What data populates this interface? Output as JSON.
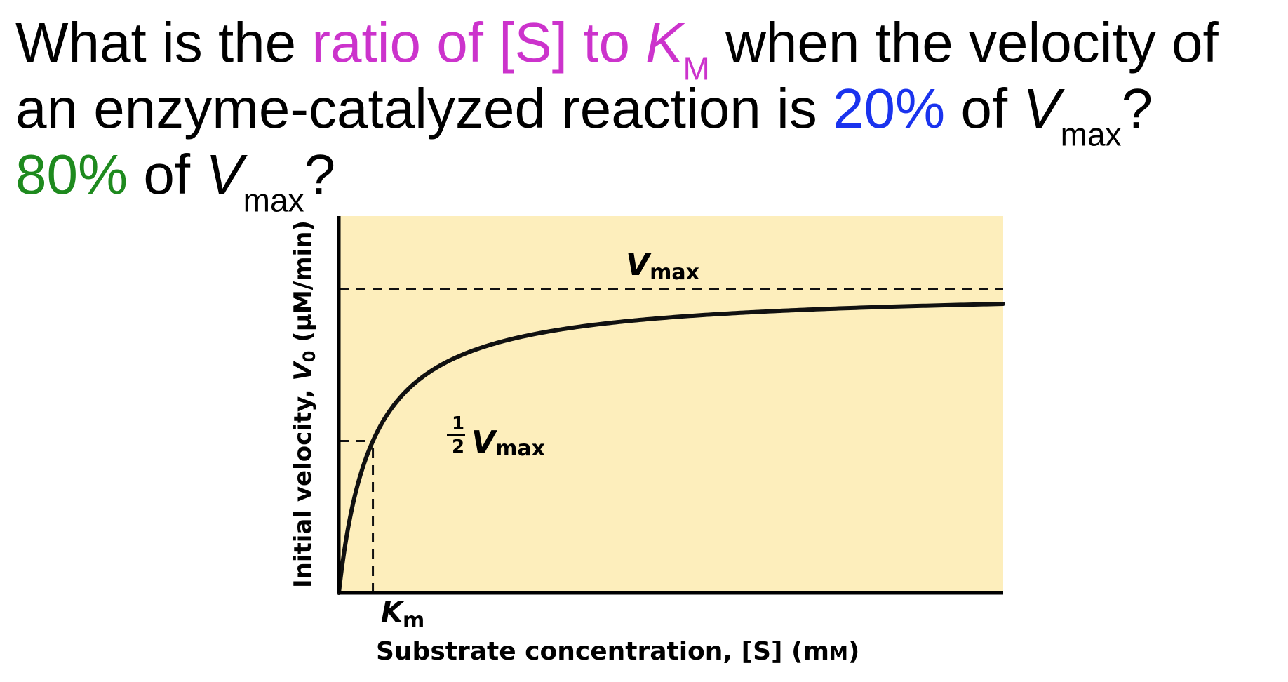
{
  "question": {
    "p1": "What is the ",
    "hl1": "ratio of [S] to ",
    "km_var": "K",
    "km_sub": "M",
    "p2": " when the velocity of an enzyme-catalyzed reaction is ",
    "pct1": "20%",
    "p3": " of ",
    "v1_var": "V",
    "v1_sub": "max",
    "p4": "? ",
    "pct2": "80%",
    "p5": " of ",
    "v2_var": "V",
    "v2_sub": "max",
    "p6": "?",
    "colors": {
      "hl": "#cc33cc",
      "pct1": "#1a33ee",
      "pct2": "#1e8a1e",
      "text": "#000000"
    }
  },
  "chart_data": {
    "type": "line",
    "title": "",
    "xlabel": "Substrate concentration, [S] (mM)",
    "xlabel_prefix": "Substrate concentration, [S] (m",
    "xlabel_unit": "M",
    "xlabel_suffix": ")",
    "ylabel": "Initial velocity, V0 (µM/min)",
    "ylabel_prefix": "Initial velocity, ",
    "ylabel_var": "V",
    "ylabel_sub": "0",
    "ylabel_suffix": " (µM/min)",
    "vmax_label_var": "V",
    "vmax_label_sub": "max",
    "half_label_num": "1",
    "half_label_den": "2",
    "half_label_var": "V",
    "half_label_sub": "max",
    "km_label_var": "K",
    "km_label_sub": "m",
    "model": "michaelis-menten",
    "vmax": 1.0,
    "km": 1.0,
    "xlim": [
      0,
      19.5
    ],
    "ylim": [
      0,
      1.24
    ],
    "series": [
      {
        "x_start": 0,
        "x_end": 19.5
      }
    ],
    "reference_lines": [
      {
        "orientation": "horizontal",
        "y": 1.0,
        "x_from": 0,
        "x_to": 19.5,
        "style": "dashed"
      },
      {
        "orientation": "horizontal",
        "y": 0.5,
        "x_from": 0,
        "x_to": 1.0,
        "style": "dashed"
      },
      {
        "orientation": "vertical",
        "x": 1.0,
        "y_from": 0,
        "y_to": 0.5,
        "style": "dashed"
      }
    ],
    "grid": false,
    "legend": "none",
    "colors": {
      "background": "#fdeebc",
      "curve": "#111111",
      "axis": "#000000"
    }
  }
}
